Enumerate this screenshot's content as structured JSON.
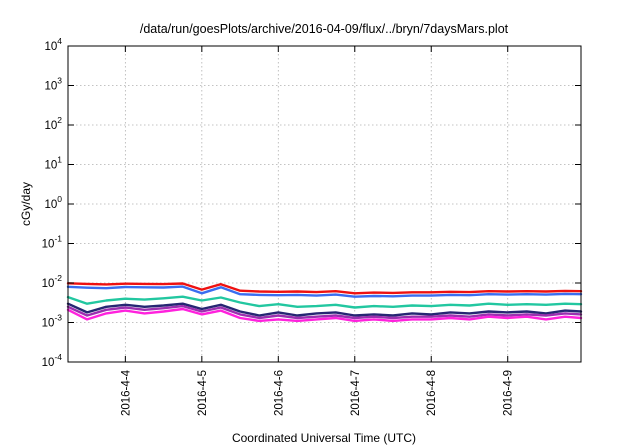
{
  "chart_data": {
    "type": "line",
    "title": "/data/run/goesPlots/archive/2016-04-09/flux/../bryn/7daysMars.plot",
    "xlabel": "Coordinated Universal Time (UTC)",
    "ylabel": "cGy/day",
    "yscale": "log",
    "ylim": [
      0.0001,
      10000
    ],
    "xlim": [
      "2016-04-03 06:00",
      "2016-04-09 23:00"
    ],
    "grid": true,
    "legend": "none",
    "x_ticks": [
      {
        "x": "2016-04-04 00:00",
        "label": "2016-4-4"
      },
      {
        "x": "2016-04-05 00:00",
        "label": "2016-4-5"
      },
      {
        "x": "2016-04-06 00:00",
        "label": "2016-4-6"
      },
      {
        "x": "2016-04-07 00:00",
        "label": "2016-4-7"
      },
      {
        "x": "2016-04-08 00:00",
        "label": "2016-4-8"
      },
      {
        "x": "2016-04-09 00:00",
        "label": "2016-4-9"
      }
    ],
    "y_ticks": [
      {
        "value": 0.0001,
        "base": "10",
        "exp": "-4"
      },
      {
        "value": 0.001,
        "base": "10",
        "exp": "-3"
      },
      {
        "value": 0.01,
        "base": "10",
        "exp": "-2"
      },
      {
        "value": 0.1,
        "base": "10",
        "exp": "-1"
      },
      {
        "value": 1,
        "base": "10",
        "exp": "0"
      },
      {
        "value": 10,
        "base": "10",
        "exp": "1"
      },
      {
        "value": 100,
        "base": "10",
        "exp": "2"
      },
      {
        "value": 1000,
        "base": "10",
        "exp": "3"
      },
      {
        "value": 10000,
        "base": "10",
        "exp": "4"
      }
    ],
    "series": [
      {
        "color": "#ee1111",
        "x": [
          "2016-04-03 06:00",
          "2016-04-03 12:00",
          "2016-04-03 18:00",
          "2016-04-04 00:00",
          "2016-04-04 06:00",
          "2016-04-04 12:00",
          "2016-04-04 18:00",
          "2016-04-05 00:00",
          "2016-04-05 06:00",
          "2016-04-05 12:00",
          "2016-04-05 18:00",
          "2016-04-06 00:00",
          "2016-04-06 06:00",
          "2016-04-06 12:00",
          "2016-04-06 18:00",
          "2016-04-07 00:00",
          "2016-04-07 06:00",
          "2016-04-07 12:00",
          "2016-04-07 18:00",
          "2016-04-08 00:00",
          "2016-04-08 06:00",
          "2016-04-08 12:00",
          "2016-04-08 18:00",
          "2016-04-09 00:00",
          "2016-04-09 06:00",
          "2016-04-09 12:00",
          "2016-04-09 18:00",
          "2016-04-09 23:00"
        ],
        "y": [
          0.0098,
          0.0095,
          0.0092,
          0.0096,
          0.0095,
          0.0094,
          0.0097,
          0.0068,
          0.0093,
          0.0064,
          0.0061,
          0.006,
          0.0061,
          0.0059,
          0.0062,
          0.0055,
          0.0057,
          0.0056,
          0.0058,
          0.0058,
          0.006,
          0.0059,
          0.0062,
          0.0061,
          0.0062,
          0.0061,
          0.0063,
          0.0062
        ]
      },
      {
        "color": "#3a6df0",
        "x": [
          "2016-04-03 06:00",
          "2016-04-03 12:00",
          "2016-04-03 18:00",
          "2016-04-04 00:00",
          "2016-04-04 06:00",
          "2016-04-04 12:00",
          "2016-04-04 18:00",
          "2016-04-05 00:00",
          "2016-04-05 06:00",
          "2016-04-05 12:00",
          "2016-04-05 18:00",
          "2016-04-06 00:00",
          "2016-04-06 06:00",
          "2016-04-06 12:00",
          "2016-04-06 18:00",
          "2016-04-07 00:00",
          "2016-04-07 06:00",
          "2016-04-07 12:00",
          "2016-04-07 18:00",
          "2016-04-08 00:00",
          "2016-04-08 06:00",
          "2016-04-08 12:00",
          "2016-04-08 18:00",
          "2016-04-09 00:00",
          "2016-04-09 06:00",
          "2016-04-09 12:00",
          "2016-04-09 18:00",
          "2016-04-09 23:00"
        ],
        "y": [
          0.008,
          0.0076,
          0.0074,
          0.0079,
          0.0078,
          0.0077,
          0.0081,
          0.0055,
          0.0078,
          0.0052,
          0.005,
          0.0049,
          0.005,
          0.0048,
          0.0051,
          0.0045,
          0.0047,
          0.0046,
          0.0048,
          0.0048,
          0.005,
          0.0049,
          0.0052,
          0.0051,
          0.0052,
          0.0051,
          0.0053,
          0.0052
        ]
      },
      {
        "color": "#22c7a0",
        "x": [
          "2016-04-03 06:00",
          "2016-04-03 12:00",
          "2016-04-03 18:00",
          "2016-04-04 00:00",
          "2016-04-04 06:00",
          "2016-04-04 12:00",
          "2016-04-04 18:00",
          "2016-04-05 00:00",
          "2016-04-05 06:00",
          "2016-04-05 12:00",
          "2016-04-05 18:00",
          "2016-04-06 00:00",
          "2016-04-06 06:00",
          "2016-04-06 12:00",
          "2016-04-06 18:00",
          "2016-04-07 00:00",
          "2016-04-07 06:00",
          "2016-04-07 12:00",
          "2016-04-07 18:00",
          "2016-04-08 00:00",
          "2016-04-08 06:00",
          "2016-04-08 12:00",
          "2016-04-08 18:00",
          "2016-04-09 00:00",
          "2016-04-09 06:00",
          "2016-04-09 12:00",
          "2016-04-09 18:00",
          "2016-04-09 23:00"
        ],
        "y": [
          0.0044,
          0.003,
          0.0036,
          0.004,
          0.0038,
          0.0041,
          0.0045,
          0.0036,
          0.0043,
          0.0032,
          0.0026,
          0.0029,
          0.0025,
          0.0026,
          0.0028,
          0.0024,
          0.0026,
          0.0025,
          0.0027,
          0.0026,
          0.0028,
          0.0027,
          0.003,
          0.0028,
          0.0029,
          0.0028,
          0.003,
          0.0029
        ]
      },
      {
        "color": "#262673",
        "x": [
          "2016-04-03 06:00",
          "2016-04-03 12:00",
          "2016-04-03 18:00",
          "2016-04-04 00:00",
          "2016-04-04 06:00",
          "2016-04-04 12:00",
          "2016-04-04 18:00",
          "2016-04-05 00:00",
          "2016-04-05 06:00",
          "2016-04-05 12:00",
          "2016-04-05 18:00",
          "2016-04-06 00:00",
          "2016-04-06 06:00",
          "2016-04-06 12:00",
          "2016-04-06 18:00",
          "2016-04-07 00:00",
          "2016-04-07 06:00",
          "2016-04-07 12:00",
          "2016-04-07 18:00",
          "2016-04-08 00:00",
          "2016-04-08 06:00",
          "2016-04-08 12:00",
          "2016-04-08 18:00",
          "2016-04-09 00:00",
          "2016-04-09 06:00",
          "2016-04-09 12:00",
          "2016-04-09 18:00",
          "2016-04-09 23:00"
        ],
        "y": [
          0.003,
          0.0018,
          0.0025,
          0.0028,
          0.0025,
          0.0027,
          0.003,
          0.0022,
          0.0028,
          0.0019,
          0.0015,
          0.0018,
          0.0015,
          0.0017,
          0.0018,
          0.0015,
          0.0016,
          0.0015,
          0.0017,
          0.0016,
          0.0018,
          0.0017,
          0.0019,
          0.0018,
          0.0019,
          0.0017,
          0.002,
          0.0019
        ]
      },
      {
        "color": "#9b30b0",
        "x": [
          "2016-04-03 06:00",
          "2016-04-03 12:00",
          "2016-04-03 18:00",
          "2016-04-04 00:00",
          "2016-04-04 06:00",
          "2016-04-04 12:00",
          "2016-04-04 18:00",
          "2016-04-05 00:00",
          "2016-04-05 06:00",
          "2016-04-05 12:00",
          "2016-04-05 18:00",
          "2016-04-06 00:00",
          "2016-04-06 06:00",
          "2016-04-06 12:00",
          "2016-04-06 18:00",
          "2016-04-07 00:00",
          "2016-04-07 06:00",
          "2016-04-07 12:00",
          "2016-04-07 18:00",
          "2016-04-08 00:00",
          "2016-04-08 06:00",
          "2016-04-08 12:00",
          "2016-04-08 18:00",
          "2016-04-09 00:00",
          "2016-04-09 06:00",
          "2016-04-09 12:00",
          "2016-04-09 18:00",
          "2016-04-09 23:00"
        ],
        "y": [
          0.0025,
          0.0015,
          0.0021,
          0.0024,
          0.0021,
          0.0023,
          0.0026,
          0.0019,
          0.0024,
          0.0016,
          0.0013,
          0.0015,
          0.0013,
          0.0014,
          0.0015,
          0.0013,
          0.0014,
          0.0013,
          0.0014,
          0.0014,
          0.0015,
          0.0014,
          0.0016,
          0.0015,
          0.0016,
          0.0015,
          0.0017,
          0.0016
        ]
      },
      {
        "color": "#ff22dd",
        "x": [
          "2016-04-03 06:00",
          "2016-04-03 12:00",
          "2016-04-03 18:00",
          "2016-04-04 00:00",
          "2016-04-04 06:00",
          "2016-04-04 12:00",
          "2016-04-04 18:00",
          "2016-04-05 00:00",
          "2016-04-05 06:00",
          "2016-04-05 12:00",
          "2016-04-05 18:00",
          "2016-04-06 00:00",
          "2016-04-06 06:00",
          "2016-04-06 12:00",
          "2016-04-06 18:00",
          "2016-04-07 00:00",
          "2016-04-07 06:00",
          "2016-04-07 12:00",
          "2016-04-07 18:00",
          "2016-04-08 00:00",
          "2016-04-08 06:00",
          "2016-04-08 12:00",
          "2016-04-08 18:00",
          "2016-04-09 00:00",
          "2016-04-09 06:00",
          "2016-04-09 12:00",
          "2016-04-09 18:00",
          "2016-04-09 23:00"
        ],
        "y": [
          0.0021,
          0.0012,
          0.0017,
          0.002,
          0.0017,
          0.0019,
          0.0022,
          0.0016,
          0.002,
          0.0013,
          0.0011,
          0.0012,
          0.0011,
          0.0012,
          0.0013,
          0.0011,
          0.0012,
          0.0011,
          0.0012,
          0.0012,
          0.0013,
          0.0012,
          0.0014,
          0.0013,
          0.0014,
          0.0012,
          0.0014,
          0.0013
        ]
      }
    ]
  }
}
